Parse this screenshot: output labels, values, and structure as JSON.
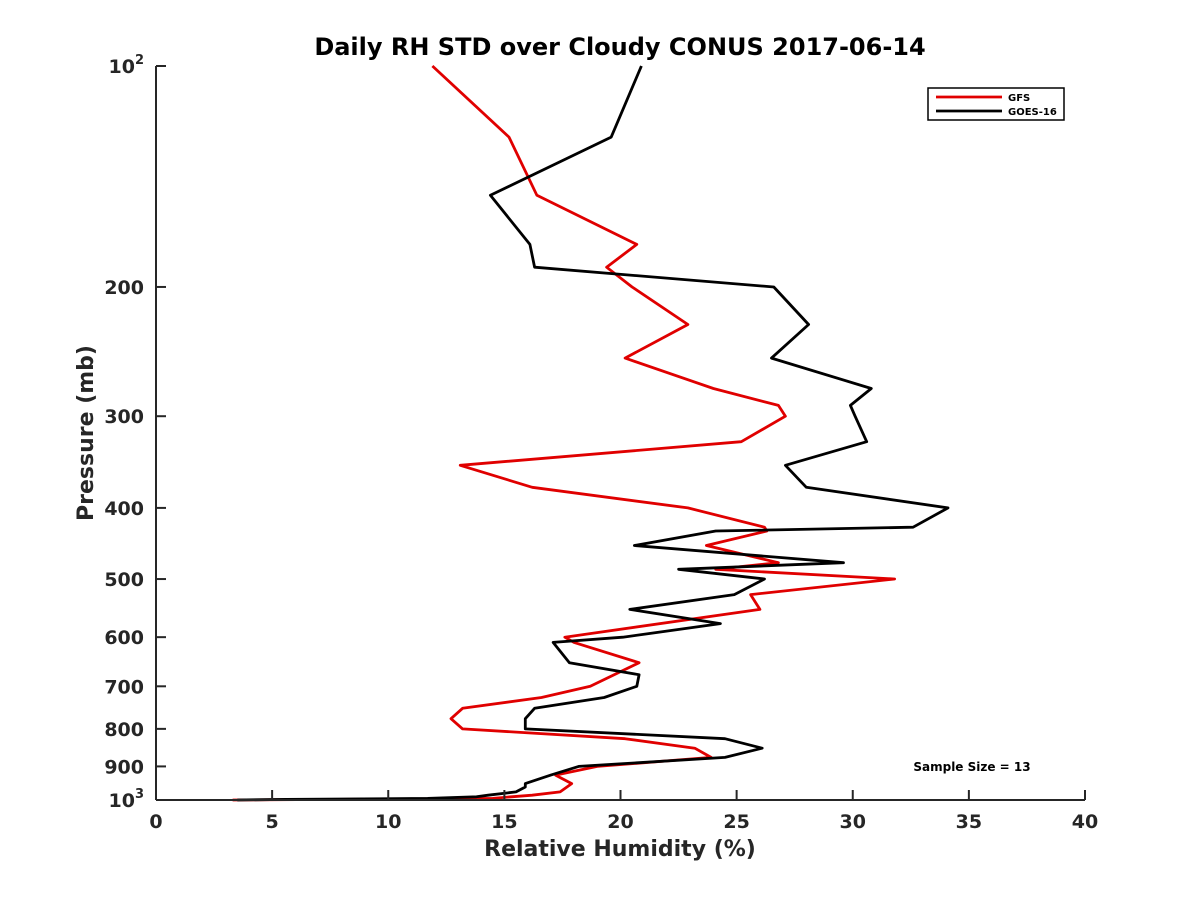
{
  "chart_data": {
    "type": "line",
    "title": "Daily RH STD over Cloudy CONUS 2017-06-14",
    "xlabel": "Relative Humidity (%)",
    "ylabel": "Pressure (mb)",
    "xlim": [
      0,
      40
    ],
    "ylim": [
      100,
      1000
    ],
    "y_scale": "log",
    "y_reversed": true,
    "x_ticks": [
      0,
      5,
      10,
      15,
      20,
      25,
      30,
      35,
      40
    ],
    "y_ticks": [
      {
        "value": 100,
        "label": "10",
        "sup": "2"
      },
      {
        "value": 200,
        "label": "200",
        "sup": ""
      },
      {
        "value": 300,
        "label": "300",
        "sup": ""
      },
      {
        "value": 400,
        "label": "400",
        "sup": ""
      },
      {
        "value": 500,
        "label": "500",
        "sup": ""
      },
      {
        "value": 600,
        "label": "600",
        "sup": ""
      },
      {
        "value": 700,
        "label": "700",
        "sup": ""
      },
      {
        "value": 800,
        "label": "800",
        "sup": ""
      },
      {
        "value": 900,
        "label": "900",
        "sup": ""
      },
      {
        "value": 1000,
        "label": "10",
        "sup": "3"
      }
    ],
    "grid": false,
    "legend": "top-right",
    "annotation": "Sample Size = 13",
    "series": [
      {
        "name": "GFS",
        "color": "#e00000",
        "points": [
          [
            11.9,
            100
          ],
          [
            15.2,
            125
          ],
          [
            16.4,
            150
          ],
          [
            20.7,
            175
          ],
          [
            19.4,
            188
          ],
          [
            20.5,
            200
          ],
          [
            22.9,
            225
          ],
          [
            20.2,
            250
          ],
          [
            24.0,
            275
          ],
          [
            26.8,
            290
          ],
          [
            27.1,
            300
          ],
          [
            25.2,
            325
          ],
          [
            13.1,
            350
          ],
          [
            16.2,
            375
          ],
          [
            22.9,
            400
          ],
          [
            26.2,
            425
          ],
          [
            26.3,
            430
          ],
          [
            23.7,
            450
          ],
          [
            26.8,
            475
          ],
          [
            24.1,
            485
          ],
          [
            31.8,
            500
          ],
          [
            25.6,
            525
          ],
          [
            26.0,
            550
          ],
          [
            17.6,
            600
          ],
          [
            18.0,
            610
          ],
          [
            20.8,
            650
          ],
          [
            18.7,
            700
          ],
          [
            16.6,
            725
          ],
          [
            13.2,
            750
          ],
          [
            12.7,
            775
          ],
          [
            13.2,
            800
          ],
          [
            20.2,
            825
          ],
          [
            23.2,
            850
          ],
          [
            23.9,
            875
          ],
          [
            19.0,
            900
          ],
          [
            17.2,
            925
          ],
          [
            17.9,
            950
          ],
          [
            17.4,
            975
          ],
          [
            16.2,
            985
          ],
          [
            15.3,
            990
          ],
          [
            14.5,
            995
          ],
          [
            10.5,
            997
          ],
          [
            3.3,
            1000
          ]
        ]
      },
      {
        "name": "GOES-16",
        "color": "#000000",
        "points": [
          [
            20.9,
            100
          ],
          [
            19.6,
            125
          ],
          [
            14.4,
            150
          ],
          [
            16.1,
            175
          ],
          [
            16.3,
            188
          ],
          [
            26.6,
            200
          ],
          [
            28.1,
            225
          ],
          [
            26.5,
            250
          ],
          [
            30.8,
            275
          ],
          [
            29.9,
            290
          ],
          [
            30.1,
            300
          ],
          [
            30.6,
            325
          ],
          [
            27.1,
            350
          ],
          [
            28.0,
            375
          ],
          [
            34.1,
            400
          ],
          [
            32.6,
            425
          ],
          [
            24.1,
            430
          ],
          [
            20.6,
            450
          ],
          [
            29.6,
            475
          ],
          [
            22.5,
            485
          ],
          [
            26.2,
            500
          ],
          [
            24.9,
            525
          ],
          [
            20.4,
            550
          ],
          [
            24.3,
            575
          ],
          [
            20.1,
            600
          ],
          [
            17.1,
            610
          ],
          [
            17.8,
            650
          ],
          [
            20.8,
            675
          ],
          [
            20.7,
            700
          ],
          [
            19.3,
            725
          ],
          [
            16.3,
            750
          ],
          [
            15.9,
            775
          ],
          [
            15.9,
            800
          ],
          [
            24.5,
            825
          ],
          [
            26.1,
            850
          ],
          [
            24.5,
            875
          ],
          [
            18.2,
            900
          ],
          [
            17.0,
            925
          ],
          [
            15.9,
            950
          ],
          [
            15.9,
            960
          ],
          [
            15.5,
            975
          ],
          [
            14.3,
            985
          ],
          [
            13.8,
            990
          ],
          [
            11.7,
            995
          ],
          [
            5.6,
            998
          ],
          [
            3.5,
            1000
          ]
        ]
      }
    ]
  }
}
